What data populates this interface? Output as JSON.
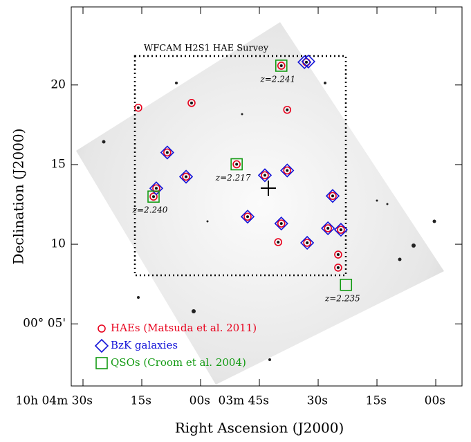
{
  "chart_data": {
    "type": "scatter",
    "title": "WFCAM H2S1 HAE Survey",
    "x_label": "Right Ascension (J2000)",
    "y_label": "Declination (J2000)",
    "xlim": [
      273,
      173.3
    ],
    "ylim": [
      1.1,
      24.9
    ],
    "xticks": [
      {
        "value": 270,
        "label": "10h 04m 30s"
      },
      {
        "value": 255,
        "label": "15s"
      },
      {
        "value": 240,
        "label": "00s"
      },
      {
        "value": 225,
        "label": "03m 45s"
      },
      {
        "value": 210,
        "label": "30s"
      },
      {
        "value": 195,
        "label": "15s"
      },
      {
        "value": 180,
        "label": "00s"
      }
    ],
    "yticks": [
      20,
      15,
      10,
      {
        "value": 5,
        "label": "00° 05'"
      }
    ],
    "series": [
      {
        "name": "HAEs (Matsuda et al. 2011)",
        "color": "#e8001c",
        "marker": "circle",
        "x": [
          255.9,
          242.3,
          217.9,
          219.4,
          213.0,
          248.5,
          243.7,
          230.8,
          223.6,
          217.9,
          251.3,
          252.0,
          206.3,
          228.0,
          219.4,
          207.5,
          204.2,
          212.8,
          220.2,
          204.9,
          204.9
        ],
        "values": [
          18.57,
          18.87,
          18.44,
          21.21,
          21.43,
          15.76,
          14.24,
          15.02,
          14.33,
          14.63,
          13.51,
          12.99,
          13.03,
          11.73,
          11.3,
          11.0,
          10.91,
          10.09,
          10.13,
          9.35,
          8.53
        ]
      },
      {
        "name": "BzK galaxies",
        "color": "#1414d8",
        "marker": "diamond",
        "x": [
          213.5,
          212.5,
          248.5,
          243.7,
          223.6,
          217.9,
          251.3,
          206.3,
          228.0,
          219.4,
          207.5,
          204.2,
          212.8
        ],
        "values": [
          21.43,
          21.47,
          15.76,
          14.24,
          14.33,
          14.63,
          13.51,
          13.03,
          11.73,
          11.3,
          11.0,
          10.91,
          10.09
        ]
      },
      {
        "name": "QSOs (Croom et al. 2004)",
        "color": "#129a12",
        "marker": "square",
        "x": [
          219.4,
          230.8,
          252.0,
          202.9
        ],
        "values": [
          21.21,
          15.02,
          12.99,
          7.45
        ],
        "labels": [
          "z=2.241",
          "z=2.217",
          "z=2.240",
          "z=2.235"
        ]
      }
    ]
  }
}
